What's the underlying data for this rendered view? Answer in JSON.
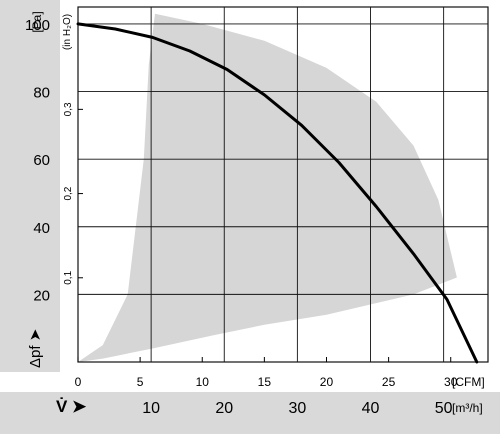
{
  "chart_data": {
    "type": "line",
    "y_axis_pa": {
      "unit": "[Pa]",
      "ticks": [
        "100",
        "80",
        "60",
        "40",
        "20"
      ],
      "values": [
        100,
        80,
        60,
        40,
        20
      ],
      "ylim": [
        0,
        105
      ]
    },
    "y_axis_inh2o": {
      "unit": "(in H₂O)",
      "ticks": [
        "0,3",
        "0,2",
        "0,1"
      ],
      "values": [
        0.3,
        0.2,
        0.1
      ]
    },
    "y_label": "Δpf ➤",
    "x_axis_cfm": {
      "unit": "[CFM]",
      "ticks": [
        "0",
        "5",
        "10",
        "15",
        "20",
        "25",
        "30"
      ],
      "values": [
        0,
        5,
        10,
        15,
        20,
        25,
        30
      ],
      "xlim": [
        0,
        33
      ]
    },
    "x_axis_m3h": {
      "label": "V̇ ➤",
      "unit": "[m³/h]",
      "ticks": [
        "10",
        "20",
        "30",
        "40",
        "50"
      ],
      "values": [
        10,
        20,
        30,
        40,
        50
      ]
    },
    "series": [
      {
        "x_cfm": [
          0,
          3,
          6,
          9,
          12,
          15,
          18,
          21,
          24,
          27,
          29.7,
          32.1
        ],
        "y_pa": [
          100,
          98.5,
          96,
          92,
          86.5,
          79,
          70,
          59,
          46,
          32,
          18.5,
          0
        ]
      }
    ],
    "operating_range": {
      "x_cfm": [
        0,
        2,
        4,
        5.3,
        5.7,
        6.2,
        10,
        15,
        20,
        24,
        27,
        29,
        30.5,
        27,
        20,
        15,
        11,
        6,
        2,
        0
      ],
      "y_pa": [
        0,
        5,
        20,
        60,
        88,
        103,
        100,
        95,
        87,
        77,
        64,
        48,
        25,
        20,
        14,
        11,
        8,
        4,
        1,
        0
      ]
    },
    "grid": true,
    "colors": {
      "curve": "#000000",
      "range_fill": "#d6d6d6",
      "axis_band": "#d9d9d9",
      "grid": "#111111"
    }
  }
}
